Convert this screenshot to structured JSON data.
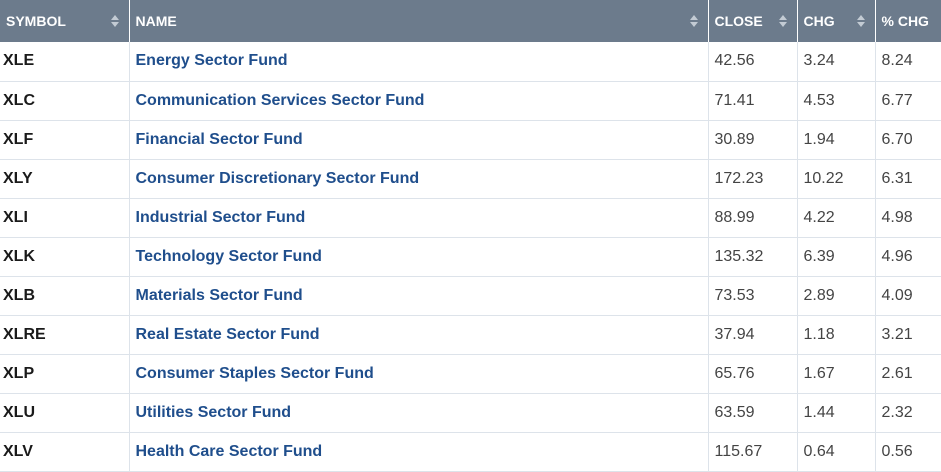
{
  "headers": {
    "symbol": "SYMBOL",
    "name": "NAME",
    "close": "CLOSE",
    "chg": "CHG",
    "pct_chg": "% CHG"
  },
  "rows": [
    {
      "symbol": "XLE",
      "name": "Energy Sector Fund",
      "close": "42.56",
      "chg": "3.24",
      "pct_chg": "8.24"
    },
    {
      "symbol": "XLC",
      "name": "Communication Services Sector Fund",
      "close": "71.41",
      "chg": "4.53",
      "pct_chg": "6.77"
    },
    {
      "symbol": "XLF",
      "name": "Financial Sector Fund",
      "close": "30.89",
      "chg": "1.94",
      "pct_chg": "6.70"
    },
    {
      "symbol": "XLY",
      "name": "Consumer Discretionary Sector Fund",
      "close": "172.23",
      "chg": "10.22",
      "pct_chg": "6.31"
    },
    {
      "symbol": "XLI",
      "name": "Industrial Sector Fund",
      "close": "88.99",
      "chg": "4.22",
      "pct_chg": "4.98"
    },
    {
      "symbol": "XLK",
      "name": "Technology Sector Fund",
      "close": "135.32",
      "chg": "6.39",
      "pct_chg": "4.96"
    },
    {
      "symbol": "XLB",
      "name": "Materials Sector Fund",
      "close": "73.53",
      "chg": "2.89",
      "pct_chg": "4.09"
    },
    {
      "symbol": "XLRE",
      "name": "Real Estate Sector Fund",
      "close": "37.94",
      "chg": "1.18",
      "pct_chg": "3.21"
    },
    {
      "symbol": "XLP",
      "name": "Consumer Staples Sector Fund",
      "close": "65.76",
      "chg": "1.67",
      "pct_chg": "2.61"
    },
    {
      "symbol": "XLU",
      "name": "Utilities Sector Fund",
      "close": "63.59",
      "chg": "1.44",
      "pct_chg": "2.32"
    },
    {
      "symbol": "XLV",
      "name": "Health Care Sector Fund",
      "close": "115.67",
      "chg": "0.64",
      "pct_chg": "0.56"
    }
  ],
  "colors": {
    "header_bg": "#6c7b8c",
    "link": "#1f4e8c"
  },
  "icons": {
    "sort": "sort-arrows-icon"
  }
}
